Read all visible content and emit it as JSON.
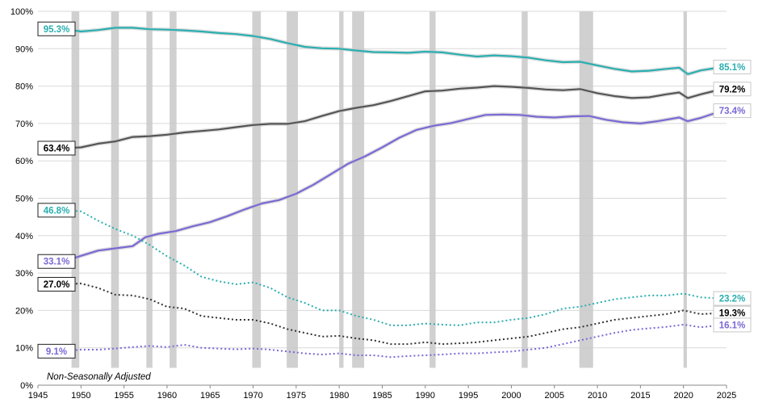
{
  "chart_data": {
    "type": "line",
    "title": "",
    "xlabel": "",
    "ylabel": "",
    "note": "Non-Seasonally Adjusted",
    "xlim": [
      1945,
      2025
    ],
    "ylim": [
      0,
      100
    ],
    "x_ticks": [
      1945,
      1950,
      1955,
      1960,
      1965,
      1970,
      1975,
      1980,
      1985,
      1990,
      1995,
      2000,
      2005,
      2010,
      2015,
      2020,
      2025
    ],
    "y_ticks": [
      0,
      10,
      20,
      30,
      40,
      50,
      60,
      70,
      80,
      90,
      100
    ],
    "y_tick_labels": [
      "0%",
      "10%",
      "20%",
      "30%",
      "40%",
      "50%",
      "60%",
      "70%",
      "80%",
      "90%",
      "100%"
    ],
    "recessions": [
      [
        1948.9,
        1949.8
      ],
      [
        1953.5,
        1954.4
      ],
      [
        1957.6,
        1958.3
      ],
      [
        1960.3,
        1961.1
      ],
      [
        1969.9,
        1970.9
      ],
      [
        1973.9,
        1975.2
      ],
      [
        1980.0,
        1980.5
      ],
      [
        1981.5,
        1982.9
      ],
      [
        1990.5,
        1991.2
      ],
      [
        2001.2,
        2001.9
      ],
      [
        2007.9,
        2009.5
      ],
      [
        2020.0,
        2020.4
      ]
    ],
    "series": [
      {
        "style": "solid",
        "color": "#2aaeb0",
        "start_label": "95.3%",
        "end_label": "85.1%",
        "x": [
          1948,
          1950,
          1952,
          1954,
          1956,
          1958,
          1960,
          1962,
          1964,
          1966,
          1968,
          1970,
          1972,
          1974,
          1976,
          1978,
          1980,
          1982,
          1984,
          1986,
          1988,
          1990,
          1992,
          1994,
          1996,
          1998,
          2000,
          2002,
          2004,
          2006,
          2008,
          2010,
          2012,
          2014,
          2016,
          2018,
          2019.5,
          2020.5,
          2022,
          2024.5
        ],
        "y": [
          95.3,
          94.6,
          95.0,
          95.6,
          95.6,
          95.2,
          95.1,
          94.9,
          94.6,
          94.2,
          93.9,
          93.4,
          92.6,
          91.5,
          90.5,
          90.1,
          90.0,
          89.5,
          89.1,
          89.0,
          88.9,
          89.2,
          89.0,
          88.4,
          87.9,
          88.2,
          88.0,
          87.6,
          86.9,
          86.4,
          86.5,
          85.5,
          84.6,
          83.9,
          84.1,
          84.6,
          84.9,
          83.2,
          84.2,
          85.1
        ]
      },
      {
        "style": "solid",
        "color": "#555555",
        "start_label": "63.4%",
        "end_label": "79.2%",
        "x": [
          1948,
          1950,
          1952,
          1954,
          1956,
          1958,
          1960,
          1962,
          1964,
          1966,
          1968,
          1970,
          1972,
          1974,
          1976,
          1978,
          1980,
          1982,
          1984,
          1986,
          1988,
          1990,
          1992,
          1994,
          1996,
          1998,
          2000,
          2002,
          2004,
          2006,
          2008,
          2010,
          2012,
          2014,
          2016,
          2018,
          2019.5,
          2020.5,
          2022,
          2024.5
        ],
        "y": [
          63.4,
          63.6,
          64.6,
          65.2,
          66.4,
          66.6,
          67.0,
          67.6,
          68.0,
          68.4,
          69.0,
          69.6,
          69.9,
          69.9,
          70.6,
          72.0,
          73.3,
          74.2,
          74.9,
          76.0,
          77.3,
          78.6,
          78.8,
          79.3,
          79.6,
          80.0,
          79.8,
          79.5,
          79.1,
          78.9,
          79.2,
          78.1,
          77.3,
          76.8,
          77.0,
          77.8,
          78.3,
          76.8,
          77.8,
          79.2
        ]
      },
      {
        "style": "solid",
        "color": "#7b68d4",
        "start_label": "33.1%",
        "end_label": "73.4%",
        "x": [
          1948,
          1950,
          1952,
          1954,
          1956,
          1957.5,
          1959,
          1961,
          1963,
          1965,
          1967,
          1969,
          1971,
          1973,
          1975,
          1977,
          1979,
          1981,
          1983,
          1985,
          1987,
          1989,
          1991,
          1993,
          1995,
          1997,
          1999,
          2001,
          2003,
          2005,
          2007,
          2009,
          2011,
          2013,
          2015,
          2017,
          2019.5,
          2020.5,
          2022,
          2024.5
        ],
        "y": [
          33.1,
          34.6,
          36.0,
          36.6,
          37.2,
          39.6,
          40.5,
          41.2,
          42.5,
          43.6,
          45.2,
          47.0,
          48.6,
          49.5,
          51.2,
          53.6,
          56.4,
          59.2,
          61.2,
          63.6,
          66.2,
          68.3,
          69.4,
          70.1,
          71.2,
          72.3,
          72.4,
          72.3,
          71.8,
          71.6,
          71.9,
          72.0,
          71.0,
          70.3,
          70.0,
          70.6,
          71.6,
          70.6,
          71.5,
          73.4
        ]
      },
      {
        "style": "dotted",
        "color": "#2aaeb0",
        "start_label": "46.8%",
        "end_label": "23.2%",
        "x": [
          1948,
          1950,
          1952,
          1954,
          1956,
          1958,
          1960,
          1962,
          1964,
          1966,
          1968,
          1970,
          1972,
          1974,
          1976,
          1978,
          1980,
          1982,
          1984,
          1986,
          1988,
          1990,
          1992,
          1994,
          1996,
          1998,
          2000,
          2002,
          2004,
          2006,
          2008,
          2010,
          2012,
          2014,
          2016,
          2018,
          2020,
          2022,
          2024.5
        ],
        "y": [
          46.8,
          46.5,
          44.0,
          41.8,
          40.0,
          37.5,
          34.5,
          32.0,
          29.0,
          27.8,
          27.0,
          27.5,
          26.0,
          23.5,
          22.0,
          20.0,
          20.0,
          18.5,
          17.5,
          16.0,
          16.0,
          16.5,
          16.2,
          16.0,
          16.8,
          16.8,
          17.5,
          18.0,
          19.0,
          20.5,
          21.0,
          22.0,
          23.0,
          23.5,
          24.0,
          24.0,
          24.5,
          23.5,
          23.2
        ]
      },
      {
        "style": "dotted",
        "color": "#333333",
        "start_label": "27.0%",
        "end_label": "19.3%",
        "x": [
          1948,
          1950,
          1952,
          1954,
          1956,
          1958,
          1960,
          1962,
          1964,
          1966,
          1968,
          1970,
          1972,
          1974,
          1976,
          1978,
          1980,
          1982,
          1984,
          1986,
          1988,
          1990,
          1992,
          1994,
          1996,
          1998,
          2000,
          2002,
          2004,
          2006,
          2008,
          2010,
          2012,
          2014,
          2016,
          2018,
          2020,
          2022,
          2024.5
        ],
        "y": [
          27.0,
          27.2,
          26.0,
          24.2,
          24.0,
          23.0,
          21.0,
          20.5,
          18.5,
          18.0,
          17.5,
          17.5,
          16.5,
          15.0,
          14.0,
          13.0,
          13.2,
          12.5,
          12.0,
          11.0,
          11.0,
          11.5,
          11.0,
          11.2,
          11.5,
          12.0,
          12.5,
          13.0,
          14.0,
          15.0,
          15.5,
          16.5,
          17.5,
          18.0,
          18.5,
          19.0,
          20.0,
          19.0,
          19.3
        ]
      },
      {
        "style": "dotted",
        "color": "#7b68d4",
        "start_label": "9.1%",
        "end_label": "16.1%",
        "x": [
          1948,
          1950,
          1952,
          1954,
          1956,
          1958,
          1960,
          1962,
          1964,
          1966,
          1968,
          1970,
          1972,
          1974,
          1976,
          1978,
          1980,
          1982,
          1984,
          1986,
          1988,
          1990,
          1992,
          1994,
          1996,
          1998,
          2000,
          2002,
          2004,
          2006,
          2008,
          2010,
          2012,
          2014,
          2016,
          2018,
          2020,
          2022,
          2024.5
        ],
        "y": [
          9.1,
          9.5,
          9.5,
          9.8,
          10.2,
          10.5,
          10.2,
          10.8,
          10.0,
          9.8,
          9.6,
          9.8,
          9.5,
          9.0,
          8.5,
          8.2,
          8.5,
          8.0,
          8.0,
          7.5,
          7.8,
          8.0,
          8.2,
          8.5,
          8.5,
          8.8,
          9.0,
          9.5,
          10.0,
          11.0,
          12.0,
          13.0,
          14.0,
          14.8,
          15.2,
          15.6,
          16.2,
          15.5,
          16.1
        ]
      }
    ]
  }
}
